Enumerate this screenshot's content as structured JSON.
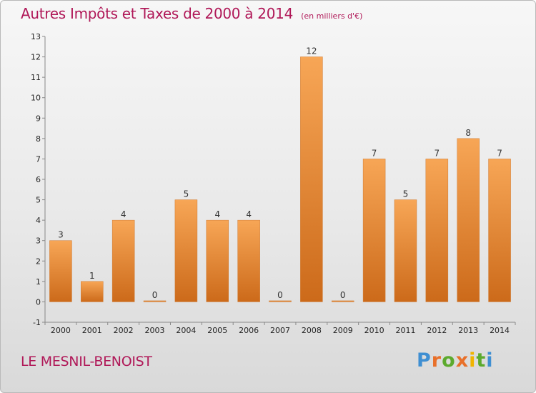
{
  "title": "Autres Impôts et Taxes de 2000 à 2014",
  "subtitle": "(en milliers d'€)",
  "commune": "LE MESNIL-BENOIST",
  "logo": [
    "P",
    "r",
    "o",
    "x",
    "i",
    "t",
    "i"
  ],
  "colors": {
    "bar_top": "#f7a656",
    "bar_bottom": "#cc6a1a",
    "title": "#b01858"
  },
  "chart_data": {
    "type": "bar",
    "title": "Autres Impôts et Taxes de 2000 à 2014",
    "subtitle": "(en milliers d'€)",
    "xlabel": "",
    "ylabel": "",
    "categories": [
      "2000",
      "2001",
      "2002",
      "2003",
      "2004",
      "2005",
      "2006",
      "2007",
      "2008",
      "2009",
      "2010",
      "2011",
      "2012",
      "2013",
      "2014"
    ],
    "values": [
      3,
      1,
      4,
      0,
      5,
      4,
      4,
      0,
      12,
      0,
      7,
      5,
      7,
      8,
      7
    ],
    "data_labels": [
      "3",
      "1",
      "4",
      "0",
      "5",
      "4",
      "4",
      "0",
      "12",
      "0",
      "7",
      "5",
      "7",
      "8",
      "7"
    ],
    "ylim": [
      -1,
      13
    ],
    "yticks": [
      "-1",
      "0",
      "1",
      "2",
      "3",
      "4",
      "5",
      "6",
      "7",
      "8",
      "9",
      "10",
      "11",
      "12",
      "13"
    ],
    "grid": false,
    "legend": "none"
  }
}
